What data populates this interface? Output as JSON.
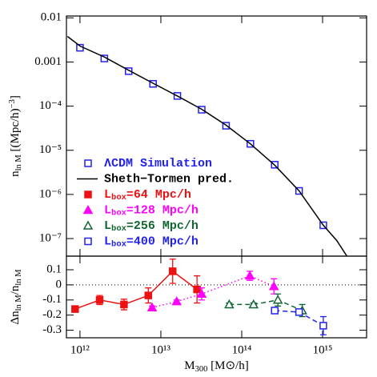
{
  "chart_data": [
    {
      "type": "line",
      "xscale": "log",
      "yscale": "log",
      "legend": "lower left",
      "xlim": [
        680000000000.0,
        3500000000000000.0
      ],
      "xticks": [
        {
          "value": 1000000000000.0,
          "label": "10¹²"
        },
        {
          "value": 10000000000000.0,
          "label": "10¹³"
        },
        {
          "value": 100000000000000.0,
          "label": "10¹⁴"
        },
        {
          "value": 1000000000000000.0,
          "label": "10¹⁵"
        }
      ],
      "ylim": [
        4e-08,
        0.011
      ],
      "yticks": [
        0.01,
        0.001,
        {
          "value": 0.0001,
          "label": "10⁻⁴"
        },
        {
          "value": 1e-05,
          "label": "10⁻⁵"
        },
        {
          "value": 1e-06,
          "label": "10⁻⁶"
        },
        {
          "value": 1e-07,
          "label": "10⁻⁷"
        }
      ],
      "ylabel": [
        {
          "text": "n"
        },
        {
          "text": "ln M",
          "sub": true
        },
        {
          "text": " [(Mpc/h)"
        },
        {
          "text": "−3",
          "sup": true
        },
        {
          "text": "]"
        }
      ],
      "series": [
        {
          "name": "ΛCDM Simulation",
          "color": "#2222ee",
          "marker": "square",
          "filled": false,
          "x": [
            1000000000000.0,
            2000000000000.0,
            4000000000000.0,
            8000000000000.0,
            16000000000000.0,
            32000000000000.0,
            64000000000000.0,
            128000000000000.0,
            256000000000000.0,
            512000000000000.0,
            1020000000000000.0
          ],
          "values": [
            0.0021,
            0.0012,
            0.00062,
            0.00032,
            0.00017,
            8.3e-05,
            3.6e-05,
            1.4e-05,
            4.7e-06,
            1.2e-06,
            2e-07
          ]
        },
        {
          "name": "Sheth−Tormen pred.",
          "color": "#000000",
          "linestyle": "solid",
          "x": [
            700000000000.0,
            1000000000000.0,
            2000000000000.0,
            4000000000000.0,
            8000000000000.0,
            16000000000000.0,
            32000000000000.0,
            64000000000000.0,
            128000000000000.0,
            256000000000000.0,
            512000000000000.0,
            1020000000000000.0,
            1500000000000000.0,
            2000000000000000.0
          ],
          "values": [
            0.0038,
            0.0023,
            0.0013,
            0.00065,
            0.00033,
            0.00017,
            8.5e-05,
            3.7e-05,
            1.4e-05,
            4.6e-06,
            1.2e-06,
            2e-07,
            9e-08,
            4e-08
          ]
        }
      ]
    },
    {
      "type": "errorbar",
      "xscale": "log",
      "reference_line": 0,
      "xlim": [
        680000000000.0,
        3500000000000000.0
      ],
      "xticks": [
        {
          "value": 1000000000000.0,
          "label": "10¹²"
        },
        {
          "value": 10000000000000.0,
          "label": "10¹³"
        },
        {
          "value": 100000000000000.0,
          "label": "10¹⁴"
        },
        {
          "value": 1000000000000000.0,
          "label": "10¹⁵"
        }
      ],
      "xlabel": [
        {
          "text": "M"
        },
        {
          "text": "300",
          "sub": true
        },
        {
          "text": " [M⊙/h]"
        }
      ],
      "ylim": [
        -0.35,
        0.19
      ],
      "yticks": [
        0.1,
        0,
        -0.1,
        -0.2,
        -0.3
      ],
      "ylabel": [
        {
          "text": "Δn"
        },
        {
          "text": "ln M",
          "sub": true
        },
        {
          "text": "/n"
        },
        {
          "text": "ln M",
          "sub": true
        }
      ],
      "series": [
        {
          "name": [
            {
              "text": "L"
            },
            {
              "text": "box",
              "sub": true
            },
            {
              "text": "=64 Mpc/h"
            }
          ],
          "color": "#ee1111",
          "marker": "square",
          "filled": true,
          "linestyle": "solid",
          "x": [
            870000000000.0,
            1750000000000.0,
            3500000000000.0,
            7000000000000.0,
            14000000000000.0,
            28000000000000.0
          ],
          "values": [
            -0.16,
            -0.1,
            -0.13,
            -0.07,
            0.09,
            -0.03
          ],
          "errors": [
            0.015,
            0.03,
            0.035,
            0.05,
            0.08,
            0.09
          ]
        },
        {
          "name": [
            {
              "text": "L"
            },
            {
              "text": "box",
              "sub": true
            },
            {
              "text": "=128 Mpc/h"
            }
          ],
          "color": "#ff00ff",
          "marker": "triangle",
          "filled": true,
          "linestyle": "dotted",
          "x": [
            7800000000000.0,
            15700000000000.0,
            32000000000000.0,
            126000000000000.0,
            250000000000000.0
          ],
          "values": [
            -0.15,
            -0.11,
            -0.06,
            0.06,
            -0.01
          ],
          "errors": [
            0.01,
            0.01,
            0.04,
            0.03,
            0.05
          ]
        },
        {
          "name": [
            {
              "text": "L"
            },
            {
              "text": "box",
              "sub": true
            },
            {
              "text": "=256 Mpc/h"
            }
          ],
          "color": "#116633",
          "marker": "triangle",
          "filled": false,
          "linestyle": "dashed",
          "x": [
            70000000000000.0,
            140000000000000.0,
            280000000000000.0,
            560000000000000.0
          ],
          "values": [
            -0.13,
            -0.13,
            -0.1,
            -0.17
          ],
          "errors": [
            0.01,
            0.01,
            0.04,
            0.04
          ]
        },
        {
          "name": [
            {
              "text": "L"
            },
            {
              "text": "box",
              "sub": true
            },
            {
              "text": "=400 Mpc/h"
            }
          ],
          "color": "#2222ee",
          "marker": "square",
          "filled": false,
          "linestyle": "dashed",
          "x": [
            256000000000000.0,
            512000000000000.0,
            1020000000000000.0
          ],
          "values": [
            -0.17,
            -0.18,
            -0.27
          ],
          "errors": [
            0.01,
            0.02,
            0.06
          ]
        }
      ]
    }
  ]
}
